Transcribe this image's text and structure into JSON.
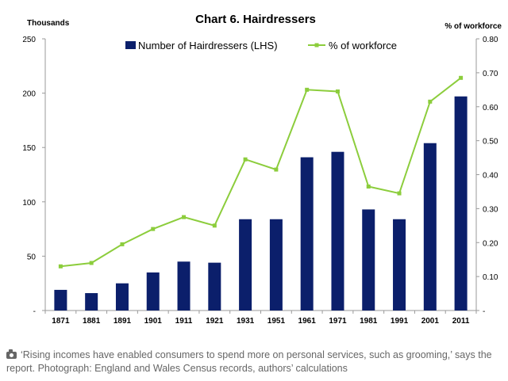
{
  "chart_data": {
    "type": "bar+line",
    "title": "Chart 6. Hairdressers",
    "left_axis_title": "Thousands",
    "right_axis_title": "% of workforce",
    "categories": [
      "1871",
      "1881",
      "1891",
      "1901",
      "1911",
      "1921",
      "1931",
      "1951",
      "1961",
      "1971",
      "1981",
      "1991",
      "2001",
      "2011"
    ],
    "left_ticks": [
      {
        "value": 0,
        "label": "-"
      },
      {
        "value": 50,
        "label": "50"
      },
      {
        "value": 100,
        "label": "100"
      },
      {
        "value": 150,
        "label": "150"
      },
      {
        "value": 200,
        "label": "200"
      },
      {
        "value": 250,
        "label": "250"
      }
    ],
    "right_ticks": [
      {
        "value": 0,
        "label": "-"
      },
      {
        "value": 0.1,
        "label": "0.10"
      },
      {
        "value": 0.2,
        "label": "0.20"
      },
      {
        "value": 0.3,
        "label": "0.30"
      },
      {
        "value": 0.4,
        "label": "0.40"
      },
      {
        "value": 0.5,
        "label": "0.50"
      },
      {
        "value": 0.6,
        "label": "0.60"
      },
      {
        "value": 0.7,
        "label": "0.70"
      },
      {
        "value": 0.8,
        "label": "0.80"
      }
    ],
    "ylim_left": [
      0,
      250
    ],
    "ylim_right": [
      0,
      0.8
    ],
    "legend_position": "top",
    "grid": false,
    "series": [
      {
        "name": "Number of Hairdressers (LHS)",
        "type": "bar",
        "axis": "left",
        "color": "#0b1f6b",
        "values": [
          19,
          16,
          25,
          35,
          45,
          44,
          84,
          84,
          141,
          146,
          93,
          84,
          154,
          197
        ]
      },
      {
        "name": "% of workforce",
        "type": "line",
        "axis": "right",
        "color": "#8ccd3c",
        "values": [
          0.13,
          0.14,
          0.195,
          0.24,
          0.275,
          0.25,
          0.445,
          0.415,
          0.65,
          0.645,
          0.365,
          0.345,
          0.615,
          0.685
        ]
      }
    ]
  },
  "caption": "‘Rising incomes have enabled consumers to spend more on personal services, such as grooming,’ says the report. Photograph: England and Wales Census records, authors’ calculations",
  "caption_icon": "camera-icon"
}
